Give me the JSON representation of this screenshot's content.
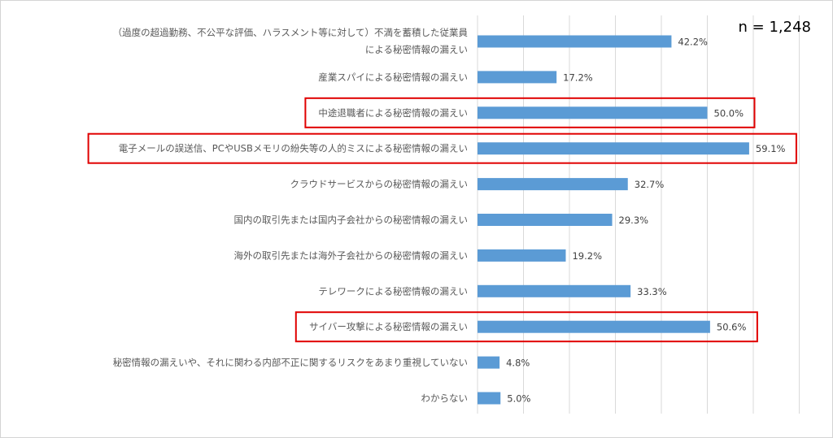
{
  "chart_data": {
    "type": "bar",
    "orientation": "horizontal",
    "note": "n = 1,248",
    "categories": [
      [
        "（過度の超過勤務、不公平な評価、ハラスメント等に対して）不満を蓄積した従業員",
        "による秘密情報の漏えい"
      ],
      [
        "産業スパイによる秘密情報の漏えい"
      ],
      [
        "中途退職者による秘密情報の漏えい"
      ],
      [
        "電子メールの誤送信、PCやUSBメモリの紛失等の人的ミスによる秘密情報の漏えい"
      ],
      [
        "クラウドサービスからの秘密情報の漏えい"
      ],
      [
        "国内の取引先または国内子会社からの秘密情報の漏えい"
      ],
      [
        "海外の取引先または海外子会社からの秘密情報の漏えい"
      ],
      [
        "テレワークによる秘密情報の漏えい"
      ],
      [
        "サイバー攻撃による秘密情報の漏えい"
      ],
      [
        "秘密情報の漏えいや、それに関わる内部不正に関するリスクをあまり重視していない"
      ],
      [
        "わからない"
      ]
    ],
    "values": [
      42.2,
      17.2,
      50.0,
      59.1,
      32.7,
      29.3,
      19.2,
      33.3,
      50.6,
      4.8,
      5.0
    ],
    "value_labels": [
      "42.2%",
      "17.2%",
      "50.0%",
      "59.1%",
      "32.7%",
      "29.3%",
      "19.2%",
      "33.3%",
      "50.6%",
      "4.8%",
      "5.0%"
    ],
    "highlighted": [
      2,
      3,
      8
    ],
    "xlim": [
      0,
      70
    ],
    "grid_step": 10,
    "grid": true,
    "colors": {
      "bar": "#5b9bd5",
      "grid": "#d9d9d9",
      "highlight": "#e00000"
    }
  }
}
